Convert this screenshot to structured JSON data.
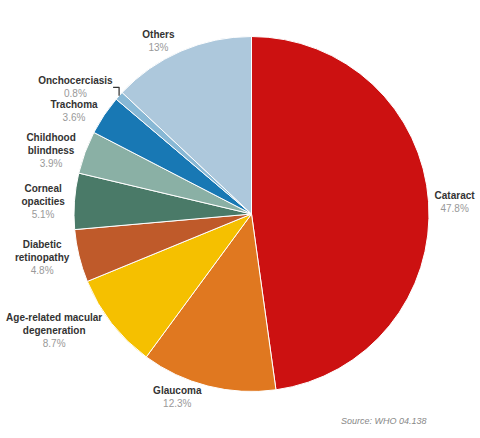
{
  "chart_data": {
    "type": "pie",
    "categories": [
      "Cataract",
      "Glaucoma",
      "Age-related macular\ndegeneration",
      "Diabetic\nretinopathy",
      "Corneal\nopacities",
      "Childhood\nblindness",
      "Trachoma",
      "Onchocerciasis",
      "Others"
    ],
    "values": [
      47.8,
      12.3,
      8.7,
      4.8,
      5.1,
      3.9,
      3.6,
      0.8,
      13.0
    ],
    "value_labels": [
      "47.8%",
      "12.3%",
      "8.7%",
      "4.8%",
      "5.1%",
      "3.9%",
      "3.6%",
      "0.8%",
      "13%"
    ],
    "colors": [
      "#cc1111",
      "#e07820",
      "#f5c000",
      "#bf5a2a",
      "#4a7a68",
      "#8ab0a5",
      "#1878b4",
      "#88b8d5",
      "#adc8dc"
    ],
    "data_labels": true,
    "annotations": [
      "Source: WHO 04.138"
    ]
  }
}
